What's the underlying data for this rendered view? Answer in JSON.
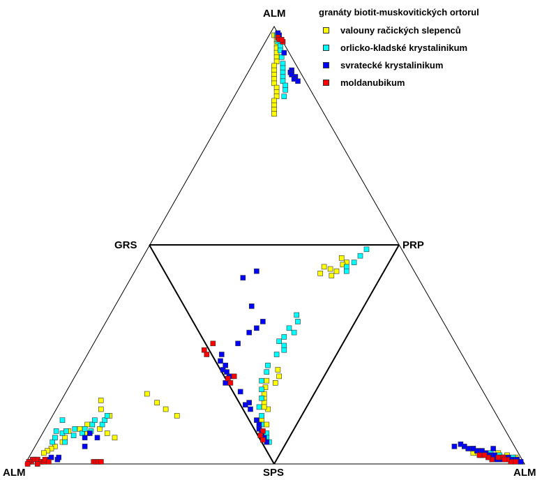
{
  "chart_data": {
    "type": "scatter",
    "subtype": "ternary-diamond",
    "vertex_labels": {
      "top": "ALM",
      "middle_left": "GRS",
      "middle_right": "PRP",
      "bottom_left": "ALM",
      "bottom_center": "SPS",
      "bottom_right": "ALM"
    },
    "legend": {
      "title": "granáty biotit-muskovitických ortorul",
      "placement": "top-right"
    },
    "series": [
      {
        "name": "valouny račických slepenců",
        "color": "#ffff00",
        "top_triangle": [
          [
            96,
            2,
            2
          ],
          [
            94,
            2,
            4
          ],
          [
            92,
            3,
            5
          ],
          [
            90,
            4,
            6
          ],
          [
            88,
            5,
            7
          ],
          [
            86,
            6,
            8
          ],
          [
            84,
            7,
            9
          ],
          [
            82,
            9,
            9
          ],
          [
            80,
            10,
            10
          ],
          [
            78,
            11,
            11
          ],
          [
            76,
            12,
            12
          ],
          [
            74,
            13,
            13
          ],
          [
            72,
            13,
            15
          ],
          [
            70,
            14,
            16
          ],
          [
            68,
            15,
            17
          ],
          [
            66,
            17,
            17
          ],
          [
            64,
            18,
            18
          ],
          [
            62,
            19,
            19
          ],
          [
            60,
            20,
            20
          ]
        ],
        "middle_triangle": [
          [
            6,
            20,
            74
          ],
          [
            8,
            17,
            75
          ],
          [
            9,
            18,
            73
          ],
          [
            12,
            19,
            69
          ],
          [
            14,
            20,
            66
          ],
          [
            11,
            22,
            67
          ],
          [
            10,
            25,
            65
          ],
          [
            13,
            25,
            62
          ],
          [
            62,
            22,
            16
          ],
          [
            63,
            18,
            19
          ],
          [
            60,
            18,
            22
          ],
          [
            57,
            20,
            23
          ],
          [
            65,
            21,
            14
          ],
          [
            70,
            19,
            11
          ],
          [
            68,
            20,
            12
          ],
          [
            72,
            18,
            10
          ],
          [
            75,
            15,
            10
          ],
          [
            80,
            15,
            5
          ],
          [
            82,
            12,
            6
          ],
          [
            74,
            17,
            9
          ]
        ],
        "left_triangle": [
          [
            58,
            12,
            30
          ],
          [
            60,
            14,
            26
          ],
          [
            62,
            16,
            22
          ],
          [
            64,
            18,
            18
          ],
          [
            57,
            25,
            18
          ],
          [
            55,
            29,
            16
          ],
          [
            55,
            22,
            23
          ],
          [
            35,
            32,
            33
          ],
          [
            33,
            28,
            39
          ],
          [
            31,
            25,
            44
          ],
          [
            28,
            22,
            50
          ],
          [
            80,
            10,
            10
          ],
          [
            84,
            8,
            8
          ],
          [
            86,
            7,
            7
          ],
          [
            88,
            6,
            6
          ],
          [
            82,
            12,
            6
          ],
          [
            78,
            12,
            10
          ],
          [
            75,
            15,
            10
          ],
          [
            90,
            5,
            5
          ],
          [
            70,
            16,
            14
          ],
          [
            68,
            14,
            18
          ],
          [
            66,
            18,
            16
          ]
        ],
        "right_triangle": [
          [
            96,
            2,
            2
          ],
          [
            94,
            2,
            4
          ],
          [
            92,
            2,
            6
          ],
          [
            90,
            3,
            7
          ],
          [
            88,
            2,
            10
          ],
          [
            86,
            3,
            11
          ],
          [
            84,
            4,
            12
          ],
          [
            82,
            5,
            13
          ],
          [
            80,
            4,
            16
          ],
          [
            78,
            5,
            17
          ],
          [
            95,
            3,
            2
          ],
          [
            91,
            4,
            5
          ],
          [
            87,
            5,
            8
          ],
          [
            83,
            5,
            12
          ],
          [
            79,
            6,
            15
          ],
          [
            77,
            5,
            18
          ],
          [
            93,
            2,
            5
          ],
          [
            85,
            4,
            11
          ],
          [
            81,
            4,
            15
          ]
        ]
      },
      {
        "name": "orlicko-kladské krystalinikum",
        "color": "#00ffff",
        "top_triangle": [
          [
            96,
            1,
            3
          ],
          [
            93,
            2,
            5
          ],
          [
            91,
            2,
            7
          ],
          [
            89,
            3,
            8
          ],
          [
            86,
            4,
            10
          ],
          [
            83,
            5,
            12
          ],
          [
            81,
            6,
            13
          ],
          [
            79,
            7,
            14
          ],
          [
            77,
            8,
            15
          ],
          [
            75,
            9,
            16
          ],
          [
            73,
            9,
            18
          ],
          [
            71,
            10,
            19
          ],
          [
            68,
            12,
            20
          ]
        ],
        "middle_triangle": [
          [
            2,
            12,
            86
          ],
          [
            5,
            13,
            82
          ],
          [
            8,
            14,
            78
          ],
          [
            10,
            16,
            74
          ],
          [
            12,
            15,
            73
          ],
          [
            32,
            25,
            43
          ],
          [
            35,
            23,
            42
          ],
          [
            38,
            25,
            37
          ],
          [
            40,
            22,
            38
          ],
          [
            42,
            25,
            33
          ],
          [
            44,
            26,
            30
          ],
          [
            46,
            23,
            31
          ],
          [
            48,
            22,
            30
          ],
          [
            50,
            24,
            26
          ],
          [
            55,
            25,
            20
          ],
          [
            58,
            24,
            18
          ],
          [
            62,
            24,
            14
          ],
          [
            66,
            22,
            12
          ],
          [
            70,
            20,
            10
          ],
          [
            74,
            19,
            7
          ],
          [
            78,
            16,
            6
          ],
          [
            82,
            14,
            4
          ],
          [
            86,
            10,
            4
          ],
          [
            88,
            9,
            3
          ],
          [
            90,
            7,
            3
          ]
        ],
        "left_triangle": [
          [
            80,
            15,
            5
          ],
          [
            84,
            10,
            6
          ],
          [
            82,
            12,
            6
          ],
          [
            78,
            14,
            8
          ],
          [
            76,
            15,
            9
          ],
          [
            72,
            16,
            12
          ],
          [
            70,
            14,
            16
          ],
          [
            68,
            16,
            16
          ],
          [
            66,
            15,
            19
          ],
          [
            64,
            18,
            18
          ],
          [
            62,
            20,
            18
          ],
          [
            60,
            18,
            22
          ],
          [
            58,
            20,
            22
          ],
          [
            56,
            22,
            22
          ],
          [
            74,
            13,
            13
          ],
          [
            79,
            10,
            11
          ],
          [
            75,
            20,
            5
          ]
        ],
        "right_triangle": [
          [
            96,
            2,
            2
          ],
          [
            94,
            3,
            3
          ],
          [
            92,
            2,
            6
          ],
          [
            90,
            3,
            7
          ],
          [
            88,
            4,
            8
          ],
          [
            86,
            3,
            11
          ],
          [
            84,
            5,
            11
          ],
          [
            82,
            5,
            13
          ],
          [
            80,
            6,
            14
          ],
          [
            78,
            6,
            16
          ],
          [
            76,
            7,
            17
          ],
          [
            95,
            2,
            3
          ],
          [
            89,
            3,
            8
          ],
          [
            85,
            4,
            11
          ],
          [
            81,
            4,
            15
          ]
        ]
      },
      {
        "name": "svratecké krystalinikum",
        "color": "#0000ff",
        "top_triangle": [
          [
            97,
            0,
            3
          ],
          [
            96,
            0,
            4
          ],
          [
            95,
            1,
            4
          ],
          [
            88,
            2,
            10
          ],
          [
            80,
            3,
            17
          ],
          [
            79,
            4,
            17
          ],
          [
            78,
            4,
            18
          ],
          [
            77,
            3,
            20
          ],
          [
            76,
            4,
            20
          ],
          [
            75,
            3,
            22
          ]
        ],
        "middle_triangle": [
          [
            12,
            51,
            37
          ],
          [
            15,
            55,
            30
          ],
          [
            28,
            45,
            27
          ],
          [
            35,
            37,
            28
          ],
          [
            38,
            38,
            24
          ],
          [
            40,
            40,
            20
          ],
          [
            45,
            42,
            13
          ],
          [
            50,
            46,
            4
          ],
          [
            53,
            45,
            2
          ],
          [
            55,
            42,
            3
          ],
          [
            57,
            42,
            1
          ],
          [
            58,
            40,
            2
          ],
          [
            60,
            38,
            2
          ],
          [
            63,
            38,
            -1
          ],
          [
            67,
            30,
            3
          ],
          [
            80,
            17,
            3
          ],
          [
            82,
            15,
            3
          ],
          [
            84,
            14,
            2
          ],
          [
            86,
            12,
            2
          ],
          [
            88,
            10,
            2
          ],
          [
            90,
            8,
            2
          ],
          [
            72,
            24,
            4
          ],
          [
            75,
            22,
            3
          ],
          [
            73,
            25,
            2
          ],
          [
            60,
            37,
            3
          ]
        ],
        "left_triangle": [
          [
            90,
            2,
            8
          ],
          [
            88,
            3,
            9
          ],
          [
            86,
            2,
            12
          ],
          [
            85,
            3,
            12
          ],
          [
            72,
            8,
            20
          ],
          [
            70,
            12,
            18
          ],
          [
            67,
            14,
            19
          ],
          [
            65,
            12,
            23
          ],
          [
            98,
            1,
            1
          ],
          [
            96,
            2,
            2
          ],
          [
            94,
            2,
            4
          ]
        ],
        "right_triangle": [
          [
            90,
            2,
            8
          ],
          [
            88,
            2,
            10
          ],
          [
            86,
            4,
            10
          ],
          [
            84,
            4,
            12
          ],
          [
            82,
            5,
            13
          ],
          [
            80,
            6,
            14
          ],
          [
            78,
            6,
            16
          ],
          [
            76,
            7,
            17
          ],
          [
            74,
            7,
            19
          ],
          [
            72,
            8,
            20
          ],
          [
            70,
            9,
            21
          ],
          [
            92,
            3,
            5
          ],
          [
            94,
            2,
            4
          ],
          [
            96,
            2,
            2
          ],
          [
            98,
            1,
            1
          ],
          [
            68,
            8,
            24
          ],
          [
            84,
            7,
            9
          ]
        ]
      },
      {
        "name": "moldanubikum",
        "color": "#ff0000",
        "top_triangle": [
          [
            95,
            1,
            4
          ],
          [
            94,
            1,
            5
          ],
          [
            93,
            0,
            7
          ],
          [
            94,
            0,
            6
          ]
        ],
        "middle_triangle": [
          [
            45,
            52,
            3
          ],
          [
            48,
            54,
            -2
          ],
          [
            50,
            52,
            -2
          ],
          [
            60,
            36,
            4
          ],
          [
            61,
            38,
            1
          ],
          [
            63,
            36,
            1
          ],
          [
            85,
            12,
            3
          ],
          [
            87,
            12,
            1
          ],
          [
            89,
            10,
            1
          ]
        ],
        "left_triangle": [
          [
            97,
            1,
            2
          ],
          [
            96,
            2,
            2
          ],
          [
            95,
            2,
            3
          ],
          [
            94,
            2,
            4
          ],
          [
            93,
            1,
            6
          ],
          [
            92,
            1,
            7
          ],
          [
            91,
            2,
            7
          ],
          [
            98,
            1,
            1
          ],
          [
            99,
            0,
            1
          ],
          [
            95,
            0,
            5
          ],
          [
            90,
            1,
            9
          ],
          [
            72,
            1,
            27
          ],
          [
            71,
            1,
            28
          ],
          [
            70,
            1,
            29
          ],
          [
            69,
            1,
            30
          ]
        ],
        "right_triangle": [
          [
            94,
            1,
            5
          ],
          [
            92,
            2,
            6
          ],
          [
            90,
            3,
            7
          ],
          [
            88,
            3,
            9
          ],
          [
            86,
            2,
            12
          ],
          [
            84,
            3,
            13
          ],
          [
            82,
            4,
            14
          ],
          [
            80,
            4,
            16
          ],
          [
            96,
            1,
            3
          ],
          [
            91,
            2,
            7
          ]
        ]
      }
    ]
  }
}
